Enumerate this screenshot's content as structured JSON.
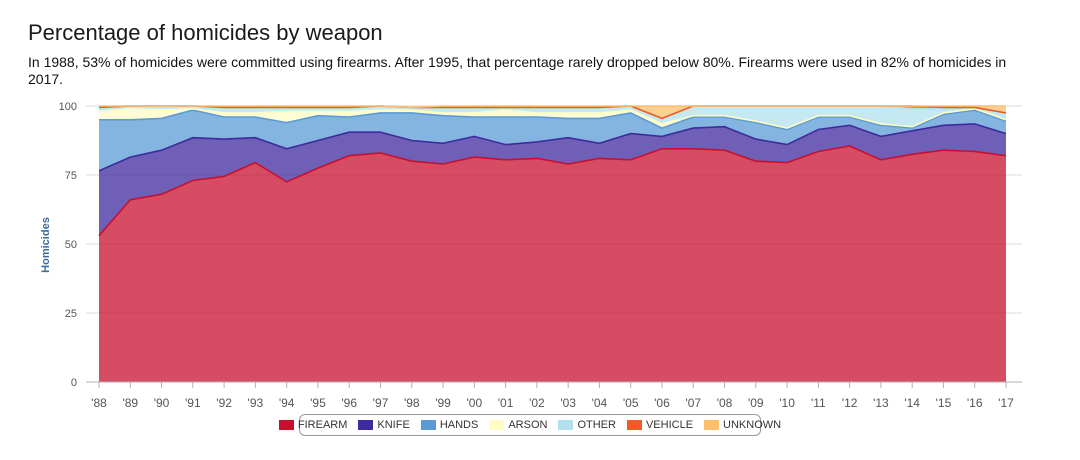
{
  "title": "Percentage of homicides by weapon",
  "subtitle": "In 1988, 53% of homicides were committed using firearms. After 1995, that percentage rarely dropped below 80%. Firearms were used in 82% of homicides in 2017.",
  "chart_data": {
    "type": "area",
    "stacked": true,
    "title": "Percentage of homicides by weapon",
    "ylabel": "Homicides",
    "xlabel": "",
    "ylim": [
      0,
      100
    ],
    "yticks": [
      0,
      25,
      50,
      75,
      100
    ],
    "grid": true,
    "legend_position": "bottom-center",
    "x": [
      "'88",
      "'89",
      "'90",
      "'91",
      "'92",
      "'93",
      "'94",
      "'95",
      "'96",
      "'97",
      "'98",
      "'99",
      "'00",
      "'01",
      "'02",
      "'03",
      "'04",
      "'05",
      "'06",
      "'07",
      "'08",
      "'09",
      "'10",
      "'11",
      "'12",
      "'13",
      "'14",
      "'15",
      "'16",
      "'17"
    ],
    "series": [
      {
        "name": "FIREARM",
        "color": "#c8102e",
        "values": [
          53,
          66,
          68,
          73,
          74.5,
          79.5,
          72.5,
          77.5,
          82,
          83,
          80,
          79,
          81.5,
          80.5,
          81,
          79,
          81,
          80.5,
          84.5,
          84.5,
          84,
          80,
          79.5,
          83.5,
          85.5,
          80.5,
          82.5,
          84,
          83.5,
          82
        ]
      },
      {
        "name": "KNIFE",
        "color": "#3f2a9e",
        "values": [
          23.5,
          15.5,
          16,
          15.5,
          13.5,
          9,
          12,
          10,
          8.5,
          7.5,
          7.5,
          7.5,
          7.5,
          5.5,
          6,
          9.5,
          5.5,
          9.5,
          4.5,
          7.5,
          8.5,
          8,
          6.5,
          8,
          7.5,
          8.5,
          8.5,
          9,
          10,
          8
        ]
      },
      {
        "name": "HANDS",
        "color": "#5b9bd5",
        "values": [
          18.5,
          13.5,
          11.5,
          10,
          8,
          7.5,
          9.5,
          9,
          5.5,
          7,
          10,
          10,
          7,
          10,
          9,
          7,
          9,
          7.5,
          3,
          4,
          3.5,
          6,
          5.5,
          4.5,
          3,
          4,
          1,
          4,
          5,
          4.5
        ]
      },
      {
        "name": "ARSON",
        "color": "#fffcc4",
        "values": [
          3,
          4,
          3,
          0.5,
          1.5,
          1.5,
          4,
          1.5,
          2,
          1,
          1,
          1,
          1.5,
          2.5,
          1.5,
          2,
          2,
          1,
          1.5,
          0.5,
          0.5,
          0.5,
          0.5,
          0.5,
          0.5,
          0.5,
          0.5,
          0.5,
          0.5,
          0.5
        ]
      },
      {
        "name": "OTHER",
        "color": "#b3e0ef",
        "values": [
          1.5,
          1,
          1.5,
          1,
          2,
          2,
          1.5,
          1.5,
          1.5,
          1.5,
          1,
          2,
          2,
          1,
          2,
          2,
          2,
          1.5,
          2,
          3.5,
          3.5,
          5.5,
          8,
          3.5,
          3.5,
          6.5,
          6.5,
          1.5,
          0.5,
          2.5
        ]
      },
      {
        "name": "VEHICLE",
        "color": "#f15a22",
        "values": [
          0,
          0,
          0,
          0,
          0,
          0,
          0,
          0,
          0,
          0,
          0,
          0,
          0,
          0,
          0,
          0,
          0,
          0,
          0,
          0,
          0,
          0,
          0,
          0,
          0,
          0,
          1,
          0.5,
          0,
          0
        ]
      },
      {
        "name": "UNKNOWN",
        "color": "#fbbf6e",
        "values": [
          0.5,
          0,
          0,
          0,
          1,
          0.5,
          0.5,
          0.5,
          0.5,
          0,
          0,
          0.5,
          0.5,
          0.5,
          0.5,
          0.5,
          0.5,
          0,
          4.5,
          0,
          0,
          0,
          0,
          0,
          0,
          0,
          0,
          0.5,
          0.5,
          2.5
        ]
      }
    ]
  }
}
